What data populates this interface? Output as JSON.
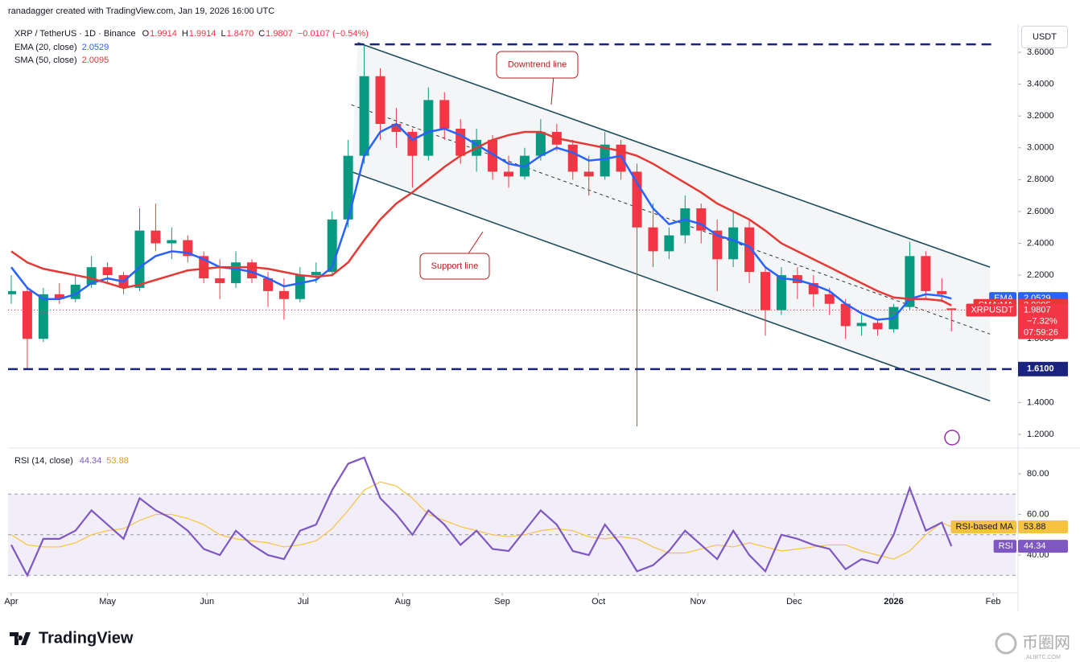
{
  "header": "ranadagger created with TradingView.com, Jan 19, 2026 16:00 UTC",
  "currency": "USDT",
  "chart_data": {
    "type": "candlestick",
    "legend": {
      "symbol": "XRP / TetherUS · 1D · Binance",
      "ohlc": [
        {
          "key": "O",
          "value": "1.9914"
        },
        {
          "key": "H",
          "value": "1.9914"
        },
        {
          "key": "L",
          "value": "1.8470"
        },
        {
          "key": "C",
          "value": "1.9807"
        }
      ],
      "change": "−0.0107 (−0.54%)"
    },
    "x": [
      "2025-04-01",
      "2025-04-06",
      "2025-04-11",
      "2025-04-16",
      "2025-04-21",
      "2025-04-26",
      "2025-05-01",
      "2025-05-06",
      "2025-05-11",
      "2025-05-16",
      "2025-05-21",
      "2025-05-26",
      "2025-05-31",
      "2025-06-05",
      "2025-06-10",
      "2025-06-15",
      "2025-06-20",
      "2025-06-25",
      "2025-06-30",
      "2025-07-05",
      "2025-07-10",
      "2025-07-15",
      "2025-07-20",
      "2025-07-25",
      "2025-07-30",
      "2025-08-04",
      "2025-08-09",
      "2025-08-14",
      "2025-08-19",
      "2025-08-24",
      "2025-08-29",
      "2025-09-03",
      "2025-09-08",
      "2025-09-13",
      "2025-09-18",
      "2025-09-23",
      "2025-09-28",
      "2025-10-03",
      "2025-10-08",
      "2025-10-13",
      "2025-10-18",
      "2025-10-23",
      "2025-10-28",
      "2025-11-02",
      "2025-11-07",
      "2025-11-12",
      "2025-11-17",
      "2025-11-22",
      "2025-11-27",
      "2025-12-02",
      "2025-12-07",
      "2025-12-12",
      "2025-12-17",
      "2025-12-22",
      "2025-12-27",
      "2026-01-01",
      "2026-01-06",
      "2026-01-11",
      "2026-01-16",
      "2026-01-19"
    ],
    "open": [
      2.08,
      2.1,
      1.8,
      2.08,
      2.05,
      2.14,
      2.25,
      2.2,
      2.12,
      2.48,
      2.4,
      2.42,
      2.32,
      2.18,
      2.15,
      2.28,
      2.18,
      2.1,
      2.05,
      2.2,
      2.22,
      2.55,
      2.95,
      3.45,
      3.15,
      3.1,
      2.95,
      3.3,
      3.12,
      2.95,
      3.05,
      2.85,
      2.82,
      2.95,
      3.1,
      3.02,
      2.85,
      2.82,
      3.02,
      2.85,
      2.5,
      2.35,
      2.45,
      2.62,
      2.48,
      2.3,
      2.5,
      2.22,
      1.98,
      2.2,
      2.15,
      2.08,
      2.02,
      1.88,
      1.9,
      1.86,
      2.0,
      2.32,
      2.1,
      1.9914
    ],
    "high": [
      2.2,
      2.12,
      2.12,
      2.15,
      2.2,
      2.32,
      2.28,
      2.22,
      2.62,
      2.65,
      2.5,
      2.45,
      2.35,
      2.3,
      2.35,
      2.3,
      2.22,
      2.18,
      2.25,
      2.28,
      2.6,
      3.05,
      3.65,
      3.5,
      3.25,
      3.12,
      3.38,
      3.35,
      3.18,
      3.12,
      3.08,
      2.95,
      3.0,
      3.18,
      3.15,
      3.05,
      2.95,
      3.1,
      3.05,
      2.9,
      2.65,
      2.5,
      2.7,
      2.65,
      2.55,
      2.6,
      2.55,
      2.25,
      2.25,
      2.25,
      2.2,
      2.12,
      2.05,
      1.95,
      1.92,
      2.02,
      2.41,
      2.35,
      2.18,
      1.9914
    ],
    "low": [
      2.02,
      1.61,
      1.78,
      2.02,
      2.03,
      2.12,
      2.15,
      2.08,
      2.1,
      2.35,
      2.3,
      2.28,
      2.15,
      2.05,
      2.12,
      2.15,
      2.0,
      1.92,
      2.03,
      2.15,
      2.2,
      2.5,
      2.9,
      3.05,
      3.0,
      2.75,
      2.92,
      3.05,
      2.9,
      2.85,
      2.8,
      2.75,
      2.8,
      2.92,
      2.98,
      2.8,
      2.7,
      2.8,
      2.8,
      1.25,
      2.25,
      2.3,
      2.4,
      2.4,
      2.1,
      2.25,
      2.15,
      1.82,
      1.95,
      2.05,
      2.0,
      1.95,
      1.8,
      1.82,
      1.82,
      1.84,
      1.98,
      2.05,
      2.03,
      1.847
    ],
    "close": [
      2.1,
      1.8,
      2.08,
      2.05,
      2.14,
      2.25,
      2.2,
      2.12,
      2.48,
      2.4,
      2.42,
      2.32,
      2.18,
      2.15,
      2.28,
      2.18,
      2.1,
      2.05,
      2.2,
      2.22,
      2.55,
      2.95,
      3.45,
      3.15,
      3.1,
      2.95,
      3.3,
      3.12,
      2.95,
      3.05,
      2.85,
      2.82,
      2.95,
      3.1,
      3.02,
      2.85,
      2.82,
      3.02,
      2.85,
      2.5,
      2.35,
      2.45,
      2.62,
      2.48,
      2.3,
      2.5,
      2.22,
      1.98,
      2.2,
      2.15,
      2.08,
      2.02,
      1.88,
      1.9,
      1.86,
      2.0,
      2.32,
      2.1,
      2.08,
      1.9807
    ],
    "up_color": "#089981",
    "down_color": "#f23645",
    "xlim": [
      "2025-03-31",
      "2026-02-08"
    ],
    "xticks": [
      {
        "value": "2025-04-01",
        "label": "Apr"
      },
      {
        "value": "2025-05-01",
        "label": "May"
      },
      {
        "value": "2025-06-01",
        "label": "Jun"
      },
      {
        "value": "2025-07-01",
        "label": "Jul"
      },
      {
        "value": "2025-08-01",
        "label": "Aug"
      },
      {
        "value": "2025-09-01",
        "label": "Sep"
      },
      {
        "value": "2025-10-01",
        "label": "Oct"
      },
      {
        "value": "2025-11-01",
        "label": "Nov"
      },
      {
        "value": "2025-12-01",
        "label": "Dec"
      },
      {
        "value": "2026-01-01",
        "label": "2026"
      },
      {
        "value": "2026-02-01",
        "label": "Feb"
      }
    ],
    "ylim": [
      1.124,
      3.777
    ],
    "yticks": [
      {
        "value": 1.2,
        "label": "1.2000"
      },
      {
        "value": 1.4,
        "label": "1.4000"
      },
      {
        "value": 1.6,
        "label": "1.6000"
      },
      {
        "value": 1.8,
        "label": "1.8000"
      },
      {
        "value": 2.0,
        "label": "2.0000"
      },
      {
        "value": 2.2,
        "label": "2.2000"
      },
      {
        "value": 2.4,
        "label": "2.4000"
      },
      {
        "value": 2.6,
        "label": "2.6000"
      },
      {
        "value": 2.8,
        "label": "2.8000"
      },
      {
        "value": 3.0,
        "label": "3.0000"
      },
      {
        "value": 3.2,
        "label": "3.2000"
      },
      {
        "value": 3.4,
        "label": "3.4000"
      },
      {
        "value": 3.6,
        "label": "3.6000"
      }
    ],
    "series": [
      {
        "name": "EMA (20, close)",
        "short": "EMA",
        "color": "#2962ff",
        "last_label": "2.0529",
        "values": [
          2.25,
          2.12,
          2.05,
          2.05,
          2.08,
          2.15,
          2.18,
          2.16,
          2.25,
          2.32,
          2.35,
          2.34,
          2.3,
          2.25,
          2.24,
          2.22,
          2.18,
          2.13,
          2.15,
          2.17,
          2.25,
          2.55,
          2.95,
          3.1,
          3.15,
          3.05,
          3.1,
          3.12,
          3.08,
          3.02,
          2.96,
          2.9,
          2.88,
          2.95,
          3.0,
          2.97,
          2.92,
          2.93,
          2.95,
          2.78,
          2.62,
          2.52,
          2.55,
          2.52,
          2.45,
          2.42,
          2.38,
          2.25,
          2.18,
          2.17,
          2.14,
          2.1,
          2.02,
          1.96,
          1.92,
          1.93,
          2.05,
          2.08,
          2.07,
          2.0529
        ]
      },
      {
        "name": "SMA (50, close)",
        "short": "SMA:MA",
        "color": "#e53935",
        "last_label": "2.0095",
        "values": [
          2.35,
          2.28,
          2.24,
          2.22,
          2.2,
          2.18,
          2.15,
          2.12,
          2.14,
          2.17,
          2.2,
          2.23,
          2.24,
          2.25,
          2.25,
          2.25,
          2.24,
          2.22,
          2.2,
          2.19,
          2.2,
          2.28,
          2.42,
          2.55,
          2.65,
          2.72,
          2.8,
          2.88,
          2.95,
          3.0,
          3.05,
          3.08,
          3.1,
          3.1,
          3.06,
          3.04,
          3.02,
          3.0,
          2.98,
          2.95,
          2.9,
          2.84,
          2.78,
          2.72,
          2.65,
          2.6,
          2.55,
          2.48,
          2.4,
          2.35,
          2.3,
          2.25,
          2.2,
          2.15,
          2.1,
          2.06,
          2.05,
          2.05,
          2.04,
          2.0095
        ]
      }
    ],
    "last_price": {
      "name": "XRPUSDT",
      "label": "1.9807",
      "change": "−7.32%",
      "countdown": "07:59:26",
      "color": "#f23645"
    },
    "levels": [
      {
        "value": 3.65,
        "x": [
          "2025-07-17",
          "2026-02-02"
        ],
        "color": "#1a237e"
      },
      {
        "value": 1.61,
        "label": "1.6100",
        "color": "#1a237e"
      }
    ],
    "channel": [
      {
        "x": [
          "2025-07-18",
          "2026-01-31"
        ],
        "values": [
          3.66,
          2.25
        ],
        "color": "#1f4e5f"
      },
      {
        "x": [
          "2025-07-16",
          "2026-01-31"
        ],
        "values": [
          2.85,
          1.41
        ],
        "color": "#1f4e5f"
      },
      {
        "x": [
          "2025-07-16",
          "2026-01-31"
        ],
        "values": [
          3.27,
          1.83
        ],
        "color": "#333333",
        "dashed": true
      }
    ],
    "annotations": [
      "Downtrend line",
      "Support line"
    ],
    "rsi": {
      "type": "line",
      "title": "RSI (14, close)",
      "name": "RSI",
      "ma_name": "RSI-based MA",
      "color": "#7e57c2",
      "ma_color": "#f5c242",
      "last_label": "44.34",
      "ma_last_label": "53.88",
      "values": [
        45,
        30,
        48,
        48,
        52,
        62,
        55,
        48,
        68,
        62,
        58,
        52,
        43,
        40,
        52,
        45,
        40,
        38,
        52,
        55,
        72,
        85,
        88,
        68,
        60,
        50,
        62,
        55,
        45,
        52,
        43,
        42,
        52,
        62,
        55,
        42,
        40,
        55,
        45,
        32,
        35,
        42,
        52,
        45,
        38,
        52,
        40,
        32,
        50,
        48,
        45,
        43,
        33,
        38,
        36,
        50,
        73,
        52,
        56,
        44.34
      ],
      "ma_values": [
        50,
        45,
        44,
        44,
        46,
        50,
        52,
        53,
        57,
        60,
        60,
        58,
        55,
        50,
        48,
        47,
        46,
        44,
        45,
        47,
        53,
        62,
        72,
        76,
        74,
        68,
        60,
        57,
        54,
        52,
        50,
        49,
        50,
        52,
        53,
        52,
        49,
        48,
        49,
        48,
        44,
        41,
        41,
        43,
        45,
        44,
        46,
        44,
        42,
        43,
        44,
        45,
        45,
        42,
        40,
        38,
        42,
        50,
        56,
        53.88
      ],
      "ylim": [
        22.2,
        91.5
      ],
      "yticks": [
        {
          "value": 80,
          "label": "80.00"
        },
        {
          "value": 60,
          "label": "60.00"
        },
        {
          "value": 40,
          "label": "40.00"
        }
      ],
      "levels": [
        70,
        50,
        30
      ]
    }
  },
  "footer": {
    "brand": "TradingView"
  },
  "watermark": {
    "name": "币圈网",
    "site": "ALIBTC.COM"
  }
}
